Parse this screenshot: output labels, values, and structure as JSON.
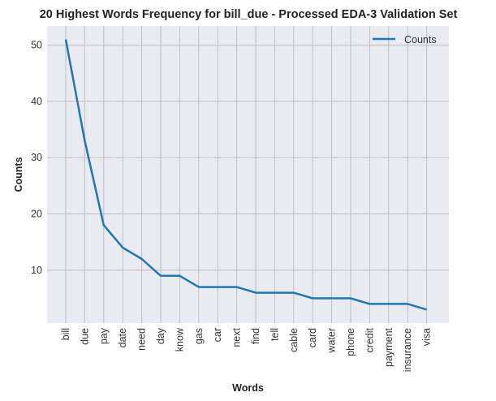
{
  "chart_data": {
    "type": "line",
    "title": "20 Highest Words Frequency for bill_due - Processed EDA-3 Validation Set",
    "xlabel": "Words",
    "ylabel": "Counts",
    "categories": [
      "bill",
      "due",
      "pay",
      "date",
      "need",
      "day",
      "know",
      "gas",
      "car",
      "next",
      "find",
      "tell",
      "cable",
      "card",
      "water",
      "phone",
      "credit",
      "payment",
      "insurance",
      "visa"
    ],
    "series": [
      {
        "name": "Counts",
        "values": [
          51,
          33,
          18,
          14,
          12,
          9,
          9,
          7,
          7,
          7,
          6,
          6,
          6,
          5,
          5,
          5,
          4,
          4,
          4,
          3
        ]
      }
    ],
    "yticks": [
      10,
      20,
      30,
      40,
      50
    ],
    "ylim": [
      0.6,
      53.4
    ],
    "grid": true,
    "legend": "top-right",
    "colors": {
      "line": "#1f77b4",
      "background": "#eaeaf2",
      "grid": "#bfbfbf"
    }
  }
}
